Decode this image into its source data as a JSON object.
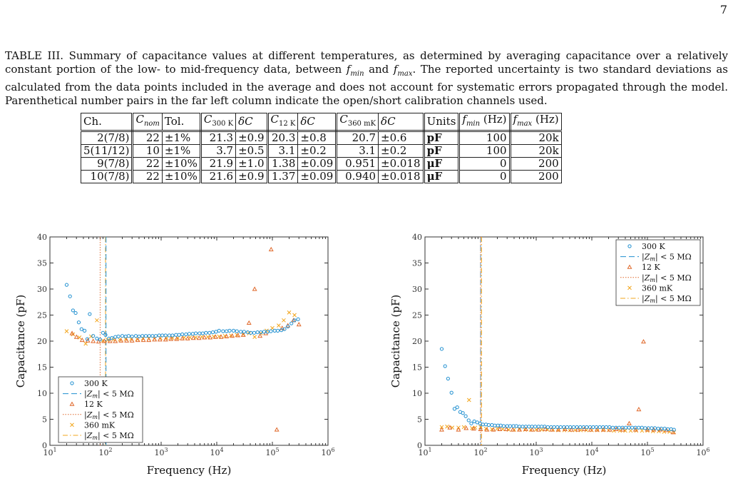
{
  "page_number": "7",
  "caption": "TABLE III. Summary of capacitance values at different temperatures, as determined by averaging capacitance over a relatively constant portion of the low- to mid-frequency data, between f_min and f_max. The reported uncertainty is two standard deviations as calculated from the data points included in the average and does not account for systematic errors propagated through the model. Parenthetical number pairs in the far left column indicate the open/short calibration channels used.",
  "table": {
    "headers": [
      "Ch.",
      "C_nom",
      "Tol.",
      "C_300 K",
      "δC",
      "C_12 K",
      "δC",
      "C_360 mK",
      "δC",
      "Units",
      "f_min (Hz)",
      "f_max (Hz)"
    ],
    "rows": [
      [
        "2(7/8)",
        "22",
        "±1%",
        "21.3",
        "±0.9",
        "20.3",
        "±0.8",
        "20.7",
        "±0.6",
        "pF",
        "100",
        "20k"
      ],
      [
        "5(11/12)",
        "10",
        "±1%",
        "3.7",
        "±0.5",
        "3.1",
        "±0.2",
        "3.1",
        "±0.2",
        "pF",
        "100",
        "20k"
      ],
      [
        "9(7/8)",
        "22",
        "±10%",
        "21.9",
        "±1.0",
        "1.38",
        "±0.09",
        "0.951",
        "±0.018",
        "μF",
        "0",
        "200"
      ],
      [
        "10(7/8)",
        "22",
        "±10%",
        "21.6",
        "±0.9",
        "1.37",
        "±0.09",
        "0.940",
        "±0.018",
        "μF",
        "0",
        "200"
      ]
    ]
  },
  "colors": {
    "s300": "#1f8fd0",
    "s12": "#e0692b",
    "s360": "#f2a51c",
    "axis": "#333333",
    "text": "#111111"
  },
  "chart_data": [
    {
      "type": "scatter",
      "xlabel": "Frequency (Hz)",
      "ylabel": "Capacitance (pF)",
      "xscale": "log",
      "xlim": [
        10,
        1000000
      ],
      "ylim": [
        0,
        40
      ],
      "xticks": [
        "10^1",
        "10^2",
        "10^3",
        "10^4",
        "10^5",
        "10^6"
      ],
      "yticks": [
        0,
        5,
        10,
        15,
        20,
        25,
        30,
        35,
        40
      ],
      "legend_position": "bottom-left",
      "legend": [
        "300 K",
        "|Z_m| < 5 MΩ",
        "12 K",
        "|Z_m| < 5 MΩ",
        "360 mK",
        "|Z_m| < 5 MΩ"
      ],
      "vlines": [
        {
          "name": "12 K |Z_m| < 5 MΩ",
          "x": 80,
          "style": "dotted",
          "color": "#e0692b"
        },
        {
          "name": "360 mK |Z_m| < 5 MΩ",
          "x": 100,
          "style": "dashdot",
          "color": "#f2a51c"
        },
        {
          "name": "300 K |Z_m| < 5 MΩ",
          "x": 102,
          "style": "dashed",
          "color": "#1f8fd0"
        }
      ],
      "series": [
        {
          "name": "300 K",
          "marker": "circle",
          "x": [
            20,
            23,
            26,
            29,
            33,
            37,
            42,
            47,
            52,
            60,
            70,
            80,
            90,
            100,
            115,
            130,
            150,
            170,
            200,
            230,
            260,
            300,
            350,
            400,
            460,
            530,
            610,
            700,
            800,
            920,
            1050,
            1200,
            1400,
            1600,
            1850,
            2100,
            2400,
            2800,
            3200,
            3700,
            4200,
            4900,
            5600,
            6400,
            7400,
            8500,
            9700,
            11000,
            13000,
            15000,
            17000,
            20000,
            23000,
            27000,
            31000,
            36000,
            41000,
            47000,
            54000,
            62000,
            71000,
            82000,
            94000,
            110000,
            125000,
            145000,
            165000,
            190000,
            220000,
            250000,
            290000
          ],
          "y": [
            30.8,
            28.6,
            25.9,
            25.4,
            23.6,
            22.3,
            22.0,
            20.4,
            25.2,
            21.0,
            20.5,
            20.3,
            21.6,
            21.2,
            20.5,
            20.6,
            20.8,
            20.9,
            21.0,
            20.9,
            21.0,
            20.9,
            21.0,
            20.9,
            21.0,
            21.0,
            21.0,
            21.0,
            21.0,
            21.1,
            21.1,
            21.1,
            21.1,
            21.1,
            21.2,
            21.2,
            21.3,
            21.3,
            21.4,
            21.4,
            21.5,
            21.5,
            21.5,
            21.6,
            21.6,
            21.7,
            21.8,
            22.0,
            21.9,
            21.9,
            22.0,
            22.0,
            21.9,
            21.8,
            21.8,
            21.7,
            21.6,
            21.6,
            21.7,
            21.7,
            21.8,
            21.8,
            21.9,
            22.0,
            22.0,
            22.1,
            22.3,
            22.8,
            23.4,
            24.0,
            24.2
          ]
        },
        {
          "name": "12 K",
          "marker": "triangle",
          "x": [
            25,
            30,
            38,
            48,
            60,
            75,
            95,
            120,
            150,
            190,
            240,
            300,
            380,
            480,
            600,
            760,
            950,
            1200,
            1500,
            1900,
            2400,
            3000,
            3800,
            4800,
            6000,
            7600,
            9500,
            12000,
            15000,
            19000,
            24000,
            30000,
            38000,
            48000,
            60000,
            76000,
            95000,
            120000,
            150000,
            190000,
            240000,
            300000
          ],
          "y": [
            21.5,
            20.8,
            20.2,
            20.1,
            20.0,
            19.9,
            20.0,
            20.0,
            20.0,
            20.1,
            20.1,
            20.1,
            20.2,
            20.2,
            20.2,
            20.3,
            20.3,
            20.3,
            20.4,
            20.4,
            20.5,
            20.5,
            20.6,
            20.6,
            20.7,
            20.7,
            20.8,
            20.8,
            20.9,
            21.0,
            21.1,
            21.2,
            23.5,
            30.0,
            21.0,
            21.5,
            37.6,
            3.0,
            22.5,
            23.0,
            24.0,
            23.2
          ]
        },
        {
          "name": "360 mK",
          "marker": "x",
          "x": [
            20,
            26,
            34,
            44,
            55,
            70,
            90,
            110,
            140,
            180,
            230,
            290,
            370,
            470,
            600,
            760,
            970,
            1250,
            1600,
            2000,
            2600,
            3300,
            4200,
            5400,
            6900,
            8800,
            11000,
            14000,
            18000,
            23000,
            30000,
            38000,
            48000,
            62000,
            79000,
            100000,
            130000,
            160000,
            200000,
            250000
          ],
          "y": [
            21.9,
            21.3,
            20.7,
            19.5,
            20.9,
            24.0,
            20.1,
            20.2,
            20.3,
            20.3,
            20.4,
            20.4,
            20.4,
            20.5,
            20.5,
            20.5,
            20.6,
            20.6,
            20.6,
            20.6,
            20.7,
            20.7,
            20.7,
            20.8,
            20.8,
            20.9,
            20.9,
            21.0,
            21.1,
            21.2,
            21.3,
            21.5,
            20.8,
            21.5,
            22.0,
            22.5,
            23.0,
            24.0,
            25.5,
            25.0
          ]
        }
      ]
    },
    {
      "type": "scatter",
      "xlabel": "Frequency (Hz)",
      "ylabel": "Capacitance (pF)",
      "xscale": "log",
      "xlim": [
        10,
        1000000
      ],
      "ylim": [
        0,
        40
      ],
      "xticks": [
        "10^1",
        "10^2",
        "10^3",
        "10^4",
        "10^5",
        "10^6"
      ],
      "yticks": [
        0,
        5,
        10,
        15,
        20,
        25,
        30,
        35,
        40
      ],
      "legend_position": "top-right",
      "legend": [
        "300 K",
        "|Z_m| < 5 MΩ",
        "12 K",
        "|Z_m| < 5 MΩ",
        "360 mK",
        "|Z_m| < 5 MΩ"
      ],
      "vlines": [
        {
          "name": "300 K |Z_m| < 5 MΩ",
          "x": 100,
          "style": "dashed",
          "color": "#1f8fd0"
        },
        {
          "name": "12 K |Z_m| < 5 MΩ",
          "x": 100,
          "style": "dotted",
          "color": "#e0692b"
        },
        {
          "name": "360 mK |Z_m| < 5 MΩ",
          "x": 104,
          "style": "dashdot",
          "color": "#f2a51c"
        }
      ],
      "series": [
        {
          "name": "300 K",
          "marker": "circle",
          "x": [
            20,
            23,
            26,
            30,
            34,
            38,
            43,
            48,
            54,
            61,
            68,
            77,
            87,
            98,
            110,
            125,
            140,
            160,
            180,
            205,
            230,
            260,
            300,
            340,
            390,
            440,
            500,
            570,
            650,
            740,
            840,
            960,
            1100,
            1250,
            1420,
            1620,
            1850,
            2100,
            2400,
            2750,
            3150,
            3600,
            4100,
            4700,
            5400,
            6200,
            7100,
            8100,
            9300,
            10600,
            12100,
            13900,
            15900,
            18200,
            20800,
            23800,
            27200,
            31100,
            35600,
            40700,
            46500,
            53200,
            60800,
            69600,
            79600,
            91000,
            104000,
            119000,
            136000,
            156000,
            178000,
            204000,
            233000,
            266000,
            300000
          ],
          "y": [
            18.5,
            15.2,
            12.8,
            10.1,
            7.0,
            7.3,
            6.4,
            6.2,
            5.6,
            4.8,
            4.2,
            4.6,
            4.4,
            4.2,
            4.0,
            4.0,
            3.9,
            3.9,
            3.8,
            3.8,
            3.8,
            3.7,
            3.7,
            3.7,
            3.7,
            3.7,
            3.6,
            3.6,
            3.6,
            3.6,
            3.6,
            3.6,
            3.6,
            3.6,
            3.6,
            3.5,
            3.5,
            3.5,
            3.5,
            3.5,
            3.5,
            3.5,
            3.5,
            3.5,
            3.5,
            3.5,
            3.5,
            3.5,
            3.5,
            3.5,
            3.5,
            3.5,
            3.5,
            3.5,
            3.5,
            3.4,
            3.4,
            3.4,
            3.4,
            3.4,
            3.4,
            3.4,
            3.4,
            3.4,
            3.4,
            3.3,
            3.3,
            3.3,
            3.3,
            3.2,
            3.2,
            3.2,
            3.1,
            3.1,
            3.0
          ]
        },
        {
          "name": "12 K",
          "marker": "triangle",
          "x": [
            20,
            28,
            40,
            55,
            75,
            100,
            130,
            170,
            220,
            290,
            380,
            500,
            650,
            850,
            1100,
            1450,
            1900,
            2500,
            3300,
            4300,
            5600,
            7300,
            9500,
            12400,
            16200,
            21100,
            27500,
            36000,
            47000,
            61000,
            70000,
            85000,
            100000,
            130000,
            170000,
            220000,
            290000
          ],
          "y": [
            3.0,
            3.4,
            3.0,
            3.3,
            3.2,
            3.1,
            3.0,
            3.0,
            3.1,
            3.1,
            3.0,
            3.0,
            3.1,
            3.0,
            3.0,
            3.1,
            3.0,
            3.0,
            3.1,
            3.0,
            3.0,
            3.1,
            3.0,
            3.0,
            3.0,
            3.0,
            3.1,
            3.0,
            4.2,
            3.0,
            6.9,
            19.9,
            3.0,
            3.0,
            3.0,
            2.9,
            2.5
          ]
        },
        {
          "name": "360 mK",
          "marker": "x",
          "x": [
            20,
            25,
            31,
            40,
            50,
            62,
            70,
            80,
            100,
            125,
            160,
            200,
            250,
            320,
            400,
            500,
            630,
            800,
            1000,
            1260,
            1600,
            2000,
            2500,
            3200,
            4000,
            5000,
            6300,
            8000,
            10000,
            12600,
            16000,
            20000,
            25000,
            32000,
            40000,
            50000,
            63000,
            80000,
            100000,
            126000,
            160000,
            200000,
            250000,
            300000
          ],
          "y": [
            3.5,
            3.6,
            3.4,
            3.4,
            3.5,
            8.7,
            3.3,
            3.4,
            3.5,
            3.2,
            3.1,
            3.2,
            3.1,
            3.0,
            3.0,
            3.1,
            3.0,
            3.0,
            3.0,
            3.0,
            3.0,
            3.0,
            2.9,
            2.9,
            2.9,
            2.9,
            2.9,
            2.9,
            2.9,
            2.9,
            2.9,
            2.9,
            2.8,
            2.8,
            2.8,
            2.8,
            2.8,
            2.8,
            2.8,
            2.7,
            2.7,
            2.6,
            2.6,
            2.5
          ]
        }
      ]
    }
  ]
}
